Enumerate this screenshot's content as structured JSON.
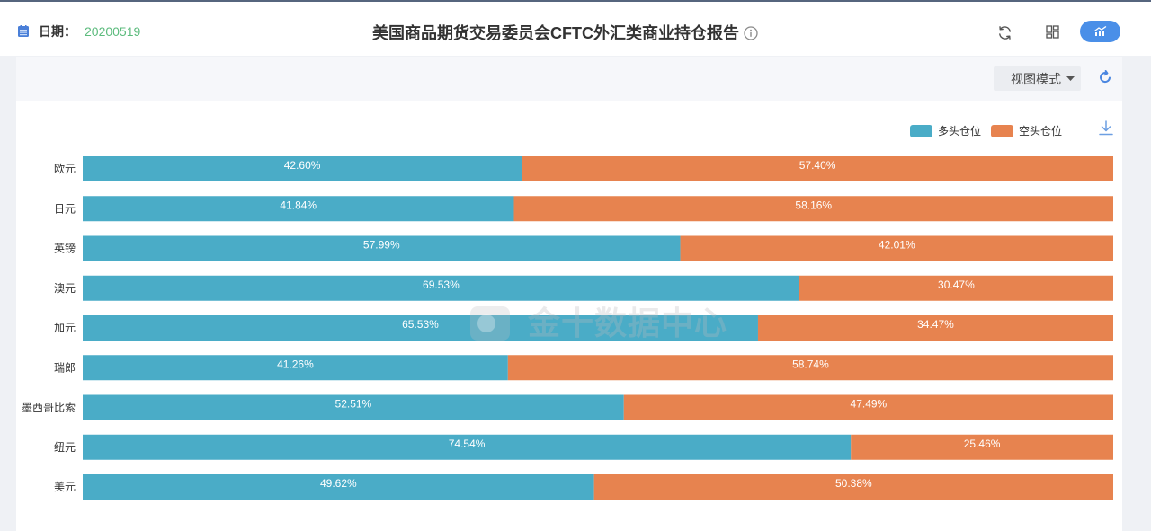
{
  "header": {
    "date_label": "日期：",
    "date_value": "20200519",
    "title": "美国商品期货交易委员会CFTC外汇类商业持仓报告",
    "icons": {
      "date": "calendar-icon",
      "title_info": "info-icon",
      "refresh": "refresh-icon",
      "layout": "layout-grid-icon",
      "chart_view": "chart-icon"
    }
  },
  "toolbar": {
    "view_mode": "视图模式",
    "icons": {
      "view_mode_caret": "caret-down-icon",
      "reload": "reload-icon"
    }
  },
  "chart_panel": {
    "watermark": "金十数据中心",
    "icons": {
      "download": "download-icon",
      "watermark_logo": "watermark-logo-icon"
    }
  },
  "theme": {
    "accent": "#4a8fe8",
    "date_color": "#5cbb7d",
    "text": "#333333"
  },
  "chart_data": {
    "type": "bar",
    "orientation": "horizontal",
    "stacked": true,
    "categories": [
      "欧元",
      "日元",
      "英镑",
      "澳元",
      "加元",
      "瑞郎",
      "墨西哥比索",
      "纽元",
      "美元"
    ],
    "series": [
      {
        "name": "多头仓位",
        "color": "#4aacc7",
        "values": [
          42.6,
          41.84,
          57.99,
          69.53,
          65.53,
          41.26,
          52.51,
          74.54,
          49.62
        ],
        "labels": [
          "42.60%",
          "41.84%",
          "57.99%",
          "69.53%",
          "65.53%",
          "41.26%",
          "52.51%",
          "74.54%",
          "49.62%"
        ]
      },
      {
        "name": "空头仓位",
        "color": "#e7834f",
        "values": [
          57.4,
          58.16,
          42.01,
          30.47,
          34.47,
          58.74,
          47.49,
          25.46,
          50.38
        ],
        "labels": [
          "57.40%",
          "58.16%",
          "42.01%",
          "30.47%",
          "34.47%",
          "58.74%",
          "47.49%",
          "25.46%",
          "50.38%"
        ]
      }
    ],
    "xlim": [
      0,
      100
    ],
    "grid": false,
    "legend": "top-right"
  }
}
